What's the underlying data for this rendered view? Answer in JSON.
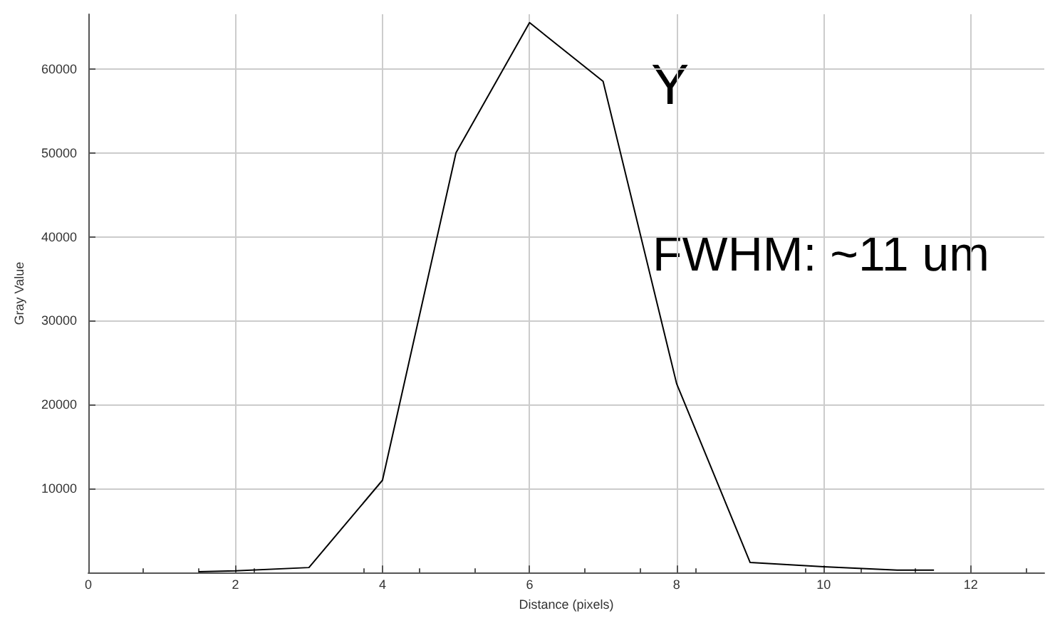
{
  "chart_data": {
    "type": "line",
    "xlabel": "Distance (pixels)",
    "ylabel": "Gray Value",
    "x": [
      1.5,
      2,
      3,
      4,
      5,
      6,
      7,
      8,
      9,
      10,
      11,
      11.5
    ],
    "series": [
      {
        "color": "#000000",
        "values": [
          100,
          200,
          600,
          11000,
          50000,
          65500,
          58500,
          22500,
          1200,
          700,
          300,
          300
        ]
      }
    ],
    "xlim": [
      0,
      13
    ],
    "xticks": [
      0,
      2,
      4,
      6,
      8,
      10,
      12
    ],
    "ylim": [
      0,
      66500
    ],
    "yticks": [
      10000,
      20000,
      30000,
      40000,
      50000,
      60000
    ],
    "grid": true,
    "marker": "none",
    "line_style": "solid",
    "annotations": [
      "Y",
      "FWHM: ~11 um"
    ]
  }
}
